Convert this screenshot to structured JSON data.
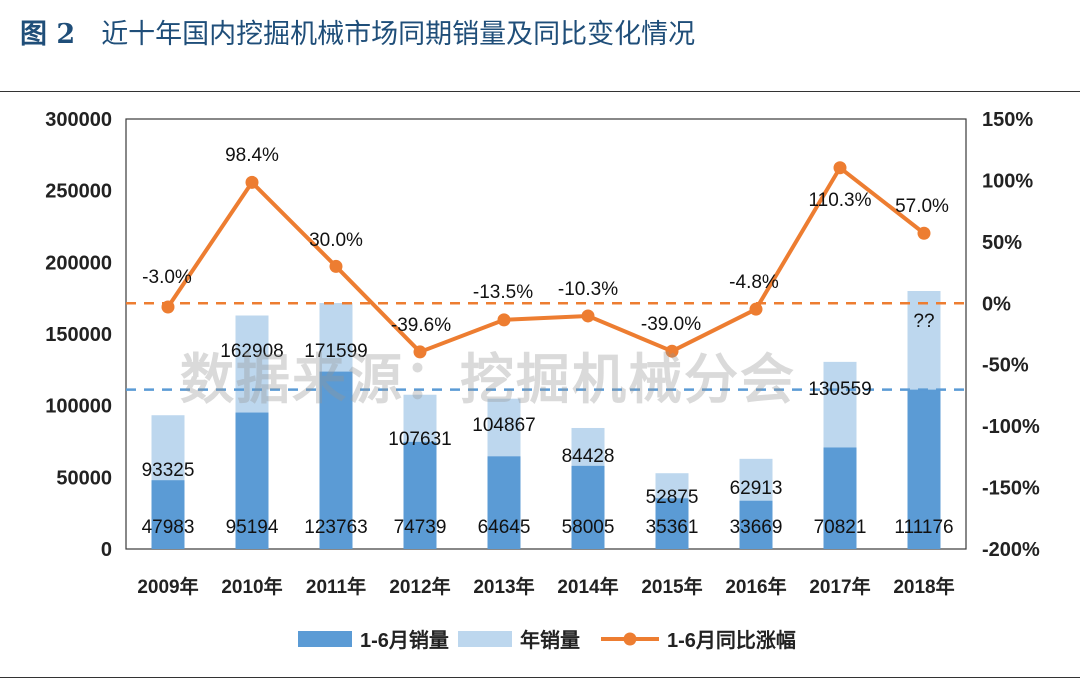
{
  "figure": {
    "label": "图 2",
    "title": "近十年国内挖掘机械市场同期销量及同比变化情况",
    "watermark": "数据来源：挖掘机械分会"
  },
  "chart_data": {
    "type": "bar",
    "categories": [
      "2009年",
      "2010年",
      "2011年",
      "2012年",
      "2013年",
      "2014年",
      "2015年",
      "2016年",
      "2017年",
      "2018年"
    ],
    "series": [
      {
        "name": "1-6月销量",
        "type": "bar",
        "axis": "left",
        "color": "#5b9bd5",
        "values": [
          47983,
          95194,
          123763,
          74739,
          64645,
          58005,
          35361,
          33669,
          70821,
          111176
        ],
        "labels": [
          "47983",
          "95194",
          "123763",
          "74739",
          "64645",
          "58005",
          "35361",
          "33669",
          "70821",
          "111176"
        ]
      },
      {
        "name": "年销量",
        "type": "bar",
        "axis": "left",
        "color": "#bdd7ee",
        "values": [
          93325,
          162908,
          171599,
          107631,
          104867,
          84428,
          52875,
          62913,
          130559,
          180000
        ],
        "labels": [
          "93325",
          "162908",
          "171599",
          "107631",
          "104867",
          "84428",
          "52875",
          "62913",
          "130559",
          "??"
        ]
      },
      {
        "name": "1-6月同比涨幅",
        "type": "line",
        "axis": "right",
        "color": "#ed7d31",
        "values": [
          -3.0,
          98.4,
          30.0,
          -39.6,
          -13.5,
          -10.3,
          -39.0,
          -4.8,
          110.3,
          57.0
        ],
        "labels": [
          "-3.0%",
          "98.4%",
          "30.0%",
          "-39.6%",
          "-13.5%",
          "-10.3%",
          "-39.0%",
          "-4.8%",
          "110.3%",
          "57.0%"
        ]
      }
    ],
    "y_left": {
      "min": 0,
      "max": 300000,
      "ticks": [
        "0",
        "50000",
        "100000",
        "150000",
        "200000",
        "250000",
        "300000"
      ]
    },
    "y_right": {
      "min": -200,
      "max": 150,
      "ticks": [
        "-200%",
        "-150%",
        "-100%",
        "-50%",
        "0%",
        "50%",
        "100%",
        "150%"
      ]
    },
    "reference_lines": [
      {
        "axis": "right",
        "value": 0,
        "color": "#ed7d31",
        "style": "dashed"
      },
      {
        "axis": "left",
        "value": 111176,
        "color": "#5b9bd5",
        "style": "dashed"
      }
    ],
    "legend": {
      "position": "bottom",
      "items": [
        {
          "label": "1-6月销量",
          "kind": "bar",
          "color": "#5b9bd5"
        },
        {
          "label": "年销量",
          "kind": "bar",
          "color": "#bdd7ee"
        },
        {
          "label": "1-6月同比涨幅",
          "kind": "line",
          "color": "#ed7d31"
        }
      ]
    }
  }
}
